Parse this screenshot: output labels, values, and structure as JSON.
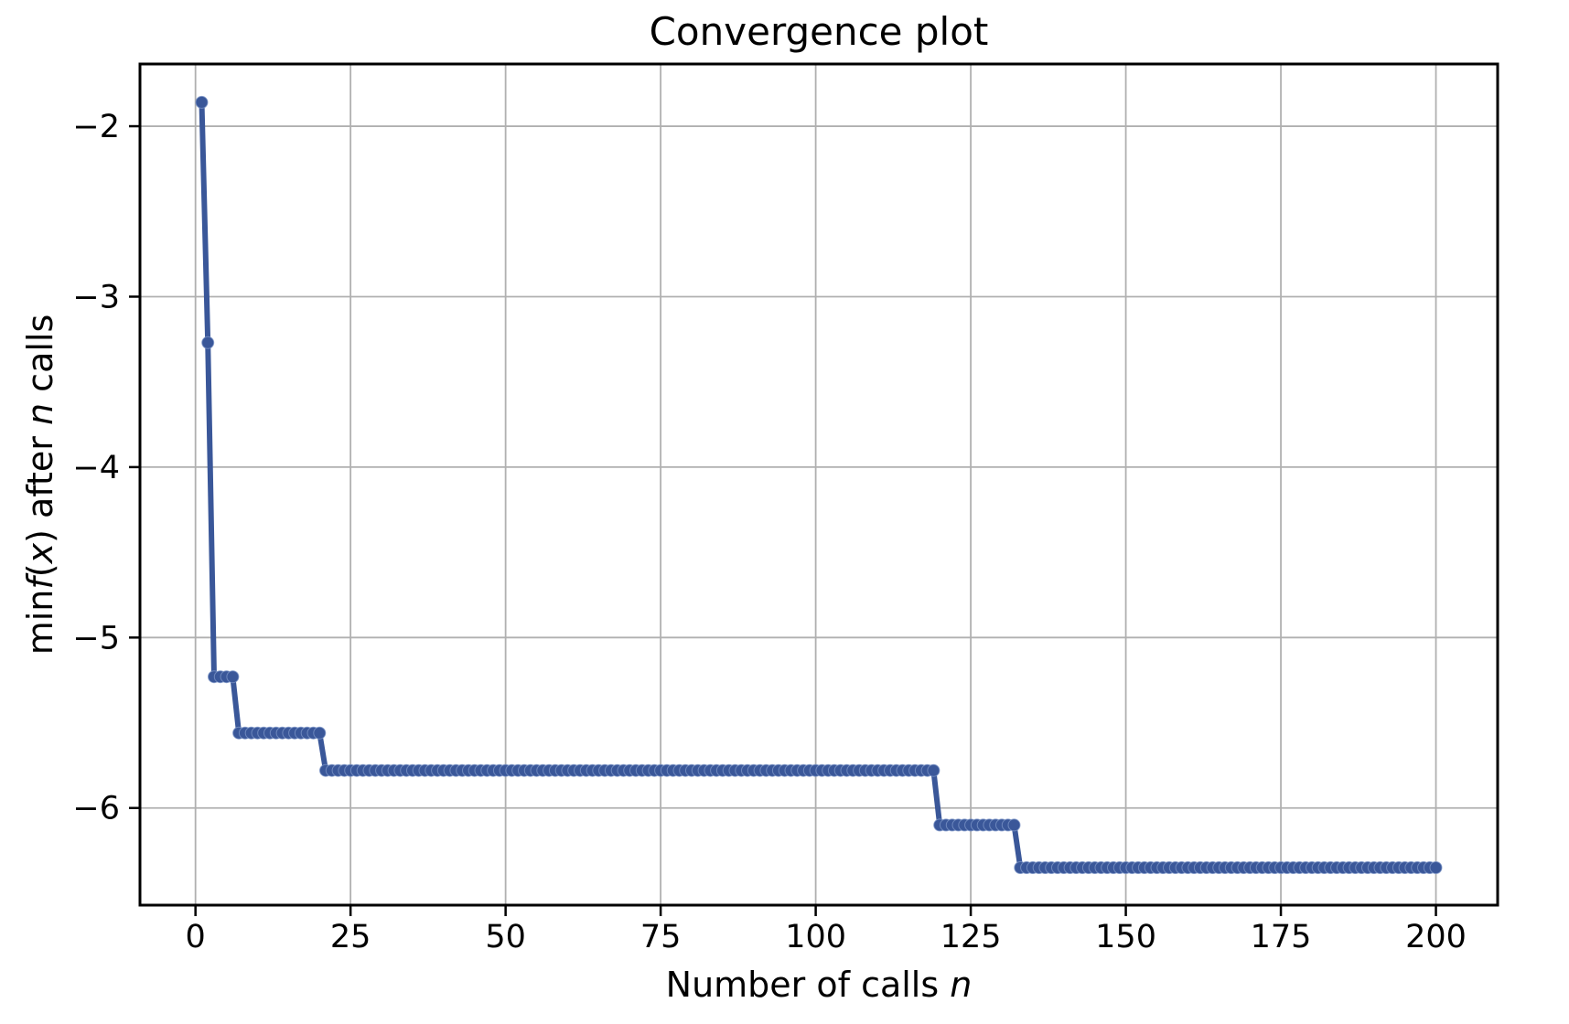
{
  "chart": {
    "title": "Convergence plot",
    "xlabel_parts": [
      {
        "text": "Number of calls ",
        "italic": false
      },
      {
        "text": "n",
        "italic": true
      }
    ],
    "ylabel_parts": [
      {
        "text": "min",
        "italic": false
      },
      {
        "text": "f",
        "italic": true
      },
      {
        "text": "(",
        "italic": false
      },
      {
        "text": "x",
        "italic": true
      },
      {
        "text": ")",
        "italic": false
      },
      {
        "text": " after ",
        "italic": false
      },
      {
        "text": "n",
        "italic": true
      },
      {
        "text": " calls",
        "italic": false
      }
    ]
  },
  "chart_data": {
    "type": "line",
    "title": "Convergence plot",
    "xlabel": "Number of calls n",
    "ylabel": "min f(x) after n calls",
    "xlim": [
      -8.95,
      209.95
    ],
    "ylim": [
      -6.57,
      -1.635
    ],
    "xticks": [
      0,
      25,
      50,
      75,
      100,
      125,
      150,
      175,
      200
    ],
    "yticks": [
      -2,
      -3,
      -4,
      -5,
      -6
    ],
    "grid": true,
    "legend": "none",
    "marker": "circle",
    "n_calls_range": [
      1,
      200
    ],
    "steps": [
      {
        "n_start": 1,
        "n_end": 1,
        "value": -1.86
      },
      {
        "n_start": 2,
        "n_end": 2,
        "value": -3.27
      },
      {
        "n_start": 3,
        "n_end": 6,
        "value": -5.23
      },
      {
        "n_start": 7,
        "n_end": 20,
        "value": -5.56
      },
      {
        "n_start": 21,
        "n_end": 119,
        "value": -5.78
      },
      {
        "n_start": 120,
        "n_end": 132,
        "value": -6.1
      },
      {
        "n_start": 133,
        "n_end": 200,
        "value": -6.35
      }
    ],
    "colors": {
      "line": "#3a5799",
      "grid": "#b0b0b0",
      "spine": "#000000",
      "background": "#ffffff",
      "text": "#000000"
    }
  }
}
